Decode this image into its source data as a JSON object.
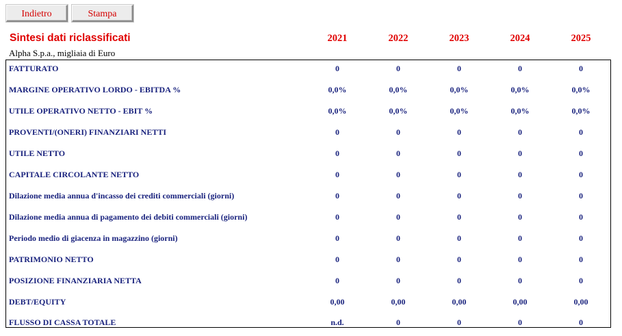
{
  "buttons": {
    "back_label": "Indietro",
    "print_label": "Stampa"
  },
  "header": {
    "title": "Sintesi dati riclassificati",
    "subtitle": "Alpha S.p.a., migliaia di Euro",
    "years": [
      "2021",
      "2022",
      "2023",
      "2024",
      "2025"
    ]
  },
  "colors": {
    "title": "#e00000",
    "row_text": "#1a237e",
    "button_text": "#d40000"
  },
  "rows": [
    {
      "label": "FATTURATO",
      "values": [
        "0",
        "0",
        "0",
        "0",
        "0"
      ]
    },
    {
      "label": "MARGINE OPERATIVO LORDO - EBITDA %",
      "values": [
        "0,0%",
        "0,0%",
        "0,0%",
        "0,0%",
        "0,0%"
      ]
    },
    {
      "label": "UTILE OPERATIVO NETTO - EBIT %",
      "values": [
        "0,0%",
        "0,0%",
        "0,0%",
        "0,0%",
        "0,0%"
      ]
    },
    {
      "label": "PROVENTI/(ONERI) FINANZIARI NETTI",
      "values": [
        "0",
        "0",
        "0",
        "0",
        "0"
      ]
    },
    {
      "label": "UTILE NETTO",
      "values": [
        "0",
        "0",
        "0",
        "0",
        "0"
      ]
    },
    {
      "label": "CAPITALE CIRCOLANTE NETTO",
      "values": [
        "0",
        "0",
        "0",
        "0",
        "0"
      ]
    },
    {
      "label": "Dilazione media annua d'incasso dei crediti commerciali (giorni)",
      "values": [
        "0",
        "0",
        "0",
        "0",
        "0"
      ]
    },
    {
      "label": "Dilazione media annua di pagamento dei debiti commerciali (giorni)",
      "values": [
        "0",
        "0",
        "0",
        "0",
        "0"
      ]
    },
    {
      "label": "Periodo medio di giacenza in magazzino (giorni)",
      "values": [
        "0",
        "0",
        "0",
        "0",
        "0"
      ]
    },
    {
      "label": "PATRIMONIO NETTO",
      "values": [
        "0",
        "0",
        "0",
        "0",
        "0"
      ]
    },
    {
      "label": "POSIZIONE FINANZIARIA NETTA",
      "values": [
        "0",
        "0",
        "0",
        "0",
        "0"
      ]
    },
    {
      "label": "DEBT/EQUITY",
      "values": [
        "0,00",
        "0,00",
        "0,00",
        "0,00",
        "0,00"
      ]
    },
    {
      "label": "FLUSSO DI CASSA TOTALE",
      "values": [
        "n.d.",
        "0",
        "0",
        "0",
        "0"
      ]
    }
  ]
}
